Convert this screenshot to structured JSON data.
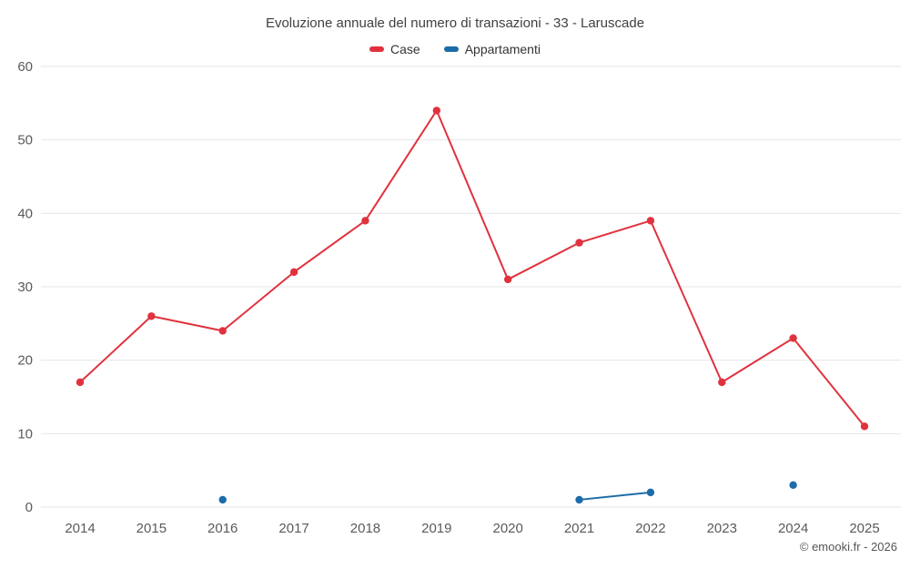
{
  "chart_data": {
    "type": "line",
    "title": "Evoluzione annuale del numero di transazioni - 33 - Laruscade",
    "categories": [
      "2014",
      "2015",
      "2016",
      "2017",
      "2018",
      "2019",
      "2020",
      "2021",
      "2022",
      "2023",
      "2024",
      "2025"
    ],
    "series": [
      {
        "name": "Case",
        "color": "#e0323e",
        "values": [
          17,
          26,
          24,
          32,
          39,
          54,
          31,
          36,
          39,
          17,
          23,
          11
        ]
      },
      {
        "name": "Appartamenti",
        "color": "#1b6ca8",
        "values": [
          null,
          null,
          1,
          null,
          null,
          null,
          null,
          1,
          2,
          null,
          3,
          null
        ]
      }
    ],
    "ylim": [
      0,
      60
    ],
    "yticks": [
      0,
      10,
      20,
      30,
      40,
      50,
      60
    ],
    "grid": true,
    "legend_position": "top",
    "grid_color": "#e6e6e6"
  },
  "footer": {
    "copyright": "© emooki.fr - 2026"
  }
}
